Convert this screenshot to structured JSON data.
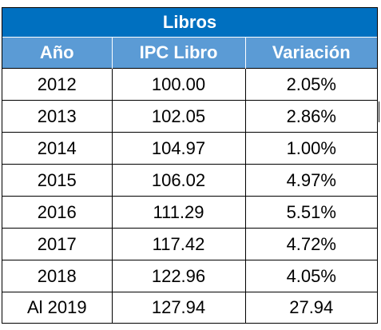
{
  "table": {
    "title": "Libros",
    "headers": [
      "Año",
      "IPC Libro",
      "Variación"
    ],
    "rows": [
      [
        "2012",
        "100.00",
        "2.05%"
      ],
      [
        "2013",
        "102.05",
        "2.86%"
      ],
      [
        "2014",
        "104.97",
        "1.00%"
      ],
      [
        "2015",
        "106.02",
        "4.97%"
      ],
      [
        "2016",
        "111.29",
        "5.51%"
      ],
      [
        "2017",
        "117.42",
        "4.72%"
      ],
      [
        "2018",
        "122.96",
        "4.05%"
      ],
      [
        "Al 2019",
        "127.94",
        "27.94"
      ]
    ]
  },
  "colors": {
    "title_bg": "#0070c0",
    "header_bg": "#5b9bd5",
    "header_text": "#ffffff"
  }
}
